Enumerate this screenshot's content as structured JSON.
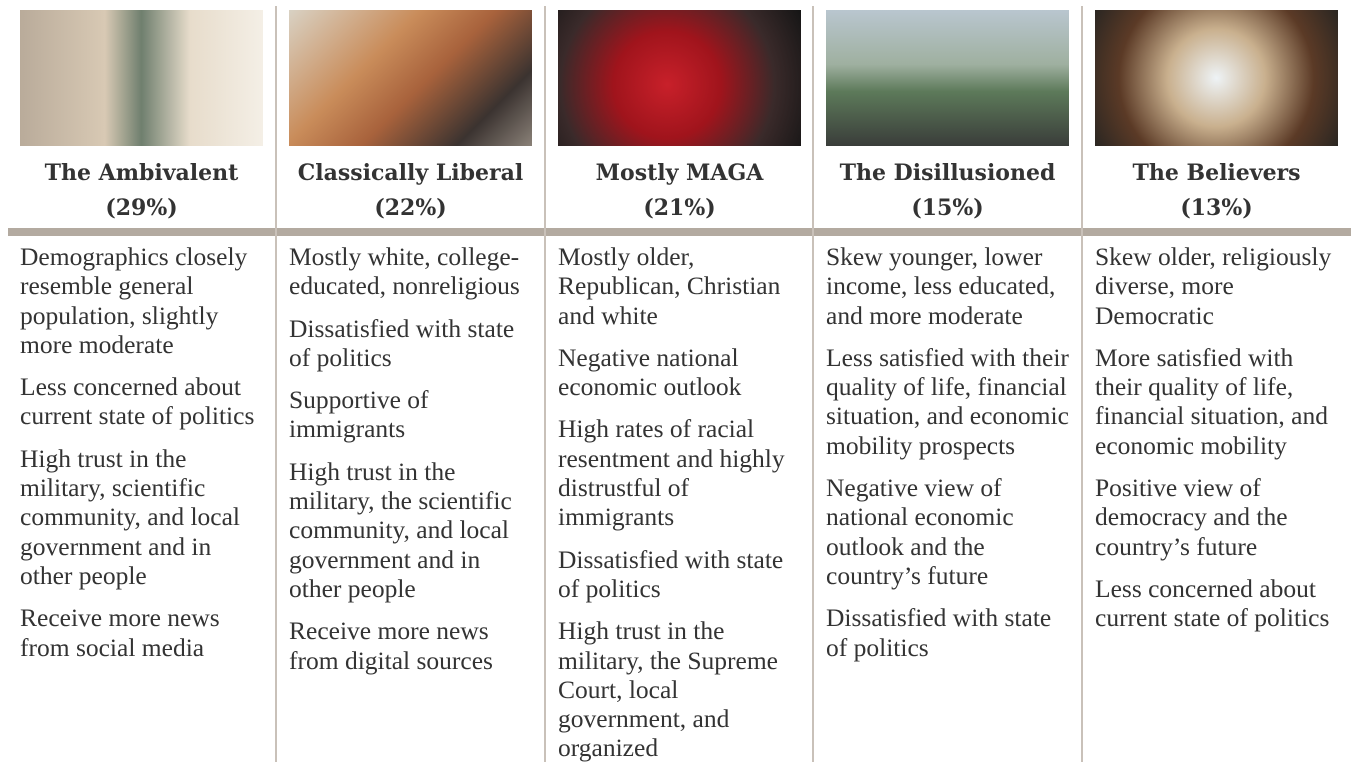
{
  "columns": [
    {
      "name": "The Ambivalent",
      "share": "(29%)",
      "points": [
        "Demographics closely resemble general population, slightly more moderate",
        "Less concerned about current state of politics",
        "High trust in the military, scientific community, and local government and in other people",
        "Receive more news from social media"
      ]
    },
    {
      "name": "Classically Liberal",
      "share": "(22%)",
      "points": [
        "Mostly white, college-educated, nonreligious",
        "Dissatisfied with state of politics",
        "Supportive of immigrants",
        "High trust in the military, the scientific community, and local government and in other people",
        "Receive more news from digital sources"
      ]
    },
    {
      "name": "Mostly MAGA",
      "share": "(21%)",
      "points": [
        "Mostly older, Republican, Christian and white",
        "Negative national economic outlook",
        "High rates of racial resentment and highly distrustful of immigrants",
        "Dissatisfied with state of politics",
        "High trust in the military, the Supreme Court, local government, and organized"
      ]
    },
    {
      "name": "The Disillusioned",
      "share": "(15%)",
      "points": [
        "Skew younger, lower income, less educated, and more moderate",
        "Less satisfied with their quality of life, financial situation, and economic mobility prospects",
        "Negative view of national economic outlook and the country’s future",
        "Dissatisfied with state of politics"
      ]
    },
    {
      "name": "The Believers",
      "share": "(13%)",
      "points": [
        "Skew older, religiously diverse, more Democratic",
        "More satisfied with their quality of life, financial situation, and economic mobility",
        "Positive view of democracy and the country’s future",
        "Less concerned about current state of politics"
      ]
    }
  ]
}
